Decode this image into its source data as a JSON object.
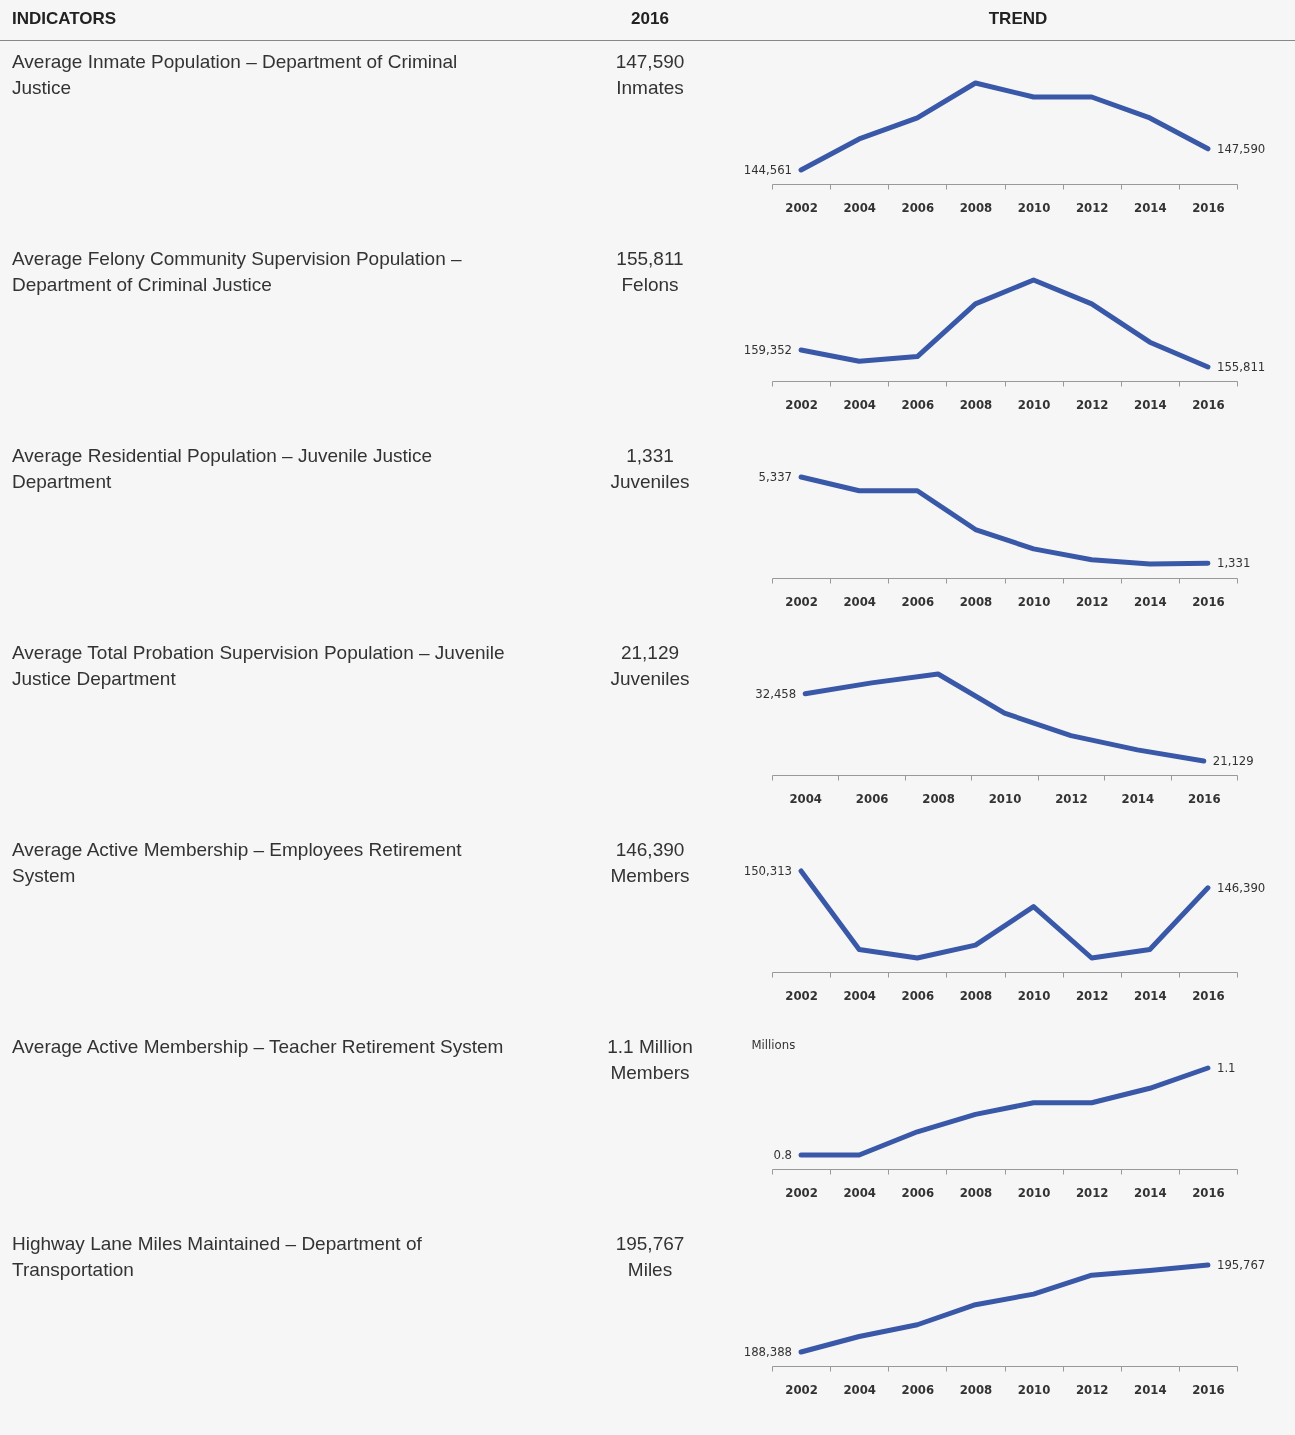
{
  "chart_data": [
    {
      "type": "other",
      "annotations": [
        "INDICATORS",
        "2016",
        "TREND"
      ]
    },
    {
      "type": "other",
      "title": "Average Inmate Population – Department of Criminal Justice",
      "annotations": [
        "147,590",
        "Inmates"
      ]
    },
    {
      "type": "line",
      "tick_labels": "x",
      "categories": [
        "2002",
        "2004",
        "2006",
        "2008",
        "2010",
        "2012",
        "2014",
        "2016"
      ],
      "series": [
        {
          "color": "#3a58a8",
          "values": [
            144561,
            149000,
            152000,
            157000,
            155000,
            155000,
            152000,
            147590
          ],
          "value_labels": [
            "144,561",
            null,
            null,
            null,
            null,
            null,
            null,
            "147,590"
          ]
        }
      ]
    },
    {
      "type": "other",
      "title": "Average Felony Community Supervision Population – Department of Criminal Justice",
      "annotations": [
        "155,811",
        "Felons"
      ]
    },
    {
      "type": "line",
      "tick_labels": "x",
      "categories": [
        "2002",
        "2004",
        "2006",
        "2008",
        "2010",
        "2012",
        "2014",
        "2016"
      ],
      "series": [
        {
          "color": "#3a58a8",
          "values": [
            159352,
            157000,
            158000,
            169000,
            174000,
            169000,
            161000,
            155811
          ],
          "value_labels": [
            "159,352",
            null,
            null,
            null,
            null,
            null,
            null,
            "155,811"
          ]
        }
      ]
    },
    {
      "type": "other",
      "title": "Average Residential Population – Juvenile Justice Department",
      "annotations": [
        "1,331",
        "Juveniles"
      ]
    },
    {
      "type": "line",
      "tick_labels": "x",
      "categories": [
        "2002",
        "2004",
        "2006",
        "2008",
        "2010",
        "2012",
        "2014",
        "2016"
      ],
      "series": [
        {
          "color": "#3a58a8",
          "values": [
            5337,
            4700,
            4700,
            2900,
            2000,
            1500,
            1300,
            1331
          ],
          "value_labels": [
            "5,337",
            null,
            null,
            null,
            null,
            null,
            null,
            "1,331"
          ]
        }
      ]
    },
    {
      "type": "other",
      "title": "Average Total Probation Supervision Population – Juvenile Justice Department",
      "annotations": [
        "21,129",
        "Juveniles"
      ]
    },
    {
      "type": "line",
      "tick_labels": "x",
      "categories": [
        "2004",
        "2006",
        "2008",
        "2010",
        "2012",
        "2014",
        "2016"
      ],
      "series": [
        {
          "color": "#3a58a8",
          "values": [
            32458,
            34300,
            35800,
            29200,
            25400,
            23000,
            21129
          ],
          "value_labels": [
            "32,458",
            null,
            null,
            null,
            null,
            null,
            "21,129"
          ]
        }
      ]
    },
    {
      "type": "other",
      "title": "Average Active Membership – Employees Retirement System",
      "annotations": [
        "146,390",
        "Members"
      ]
    },
    {
      "type": "line",
      "tick_labels": "x",
      "categories": [
        "2002",
        "2004",
        "2006",
        "2008",
        "2010",
        "2012",
        "2014",
        "2016"
      ],
      "series": [
        {
          "color": "#3a58a8",
          "values": [
            150313,
            132000,
            130000,
            133000,
            142000,
            130000,
            132000,
            146390
          ],
          "value_labels": [
            "150,313",
            null,
            null,
            null,
            null,
            null,
            null,
            "146,390"
          ]
        }
      ]
    },
    {
      "type": "other",
      "title": "Average Active Membership – Teacher Retirement System",
      "annotations": [
        "1.1 Million",
        "Members"
      ]
    },
    {
      "type": "line",
      "tick_labels": "x",
      "ylabel": "Millions",
      "categories": [
        "2002",
        "2004",
        "2006",
        "2008",
        "2010",
        "2012",
        "2014",
        "2016"
      ],
      "series": [
        {
          "color": "#3a58a8",
          "values": [
            0.8,
            0.8,
            0.88,
            0.94,
            0.98,
            0.98,
            1.03,
            1.1
          ],
          "value_labels": [
            "0.8",
            null,
            null,
            null,
            null,
            null,
            null,
            "1.1"
          ]
        }
      ]
    },
    {
      "type": "other",
      "title": "Highway Lane Miles Maintained – Department of Transportation",
      "annotations": [
        "195,767",
        "Miles"
      ]
    },
    {
      "type": "line",
      "tick_labels": "x",
      "categories": [
        "2002",
        "2004",
        "2006",
        "2008",
        "2010",
        "2012",
        "2014",
        "2016"
      ],
      "series": [
        {
          "color": "#3a58a8",
          "values": [
            188388,
            189700,
            190700,
            192400,
            193300,
            194900,
            195300,
            195767
          ],
          "value_labels": [
            "188,388",
            null,
            null,
            null,
            null,
            null,
            null,
            "195,767"
          ]
        }
      ]
    }
  ]
}
